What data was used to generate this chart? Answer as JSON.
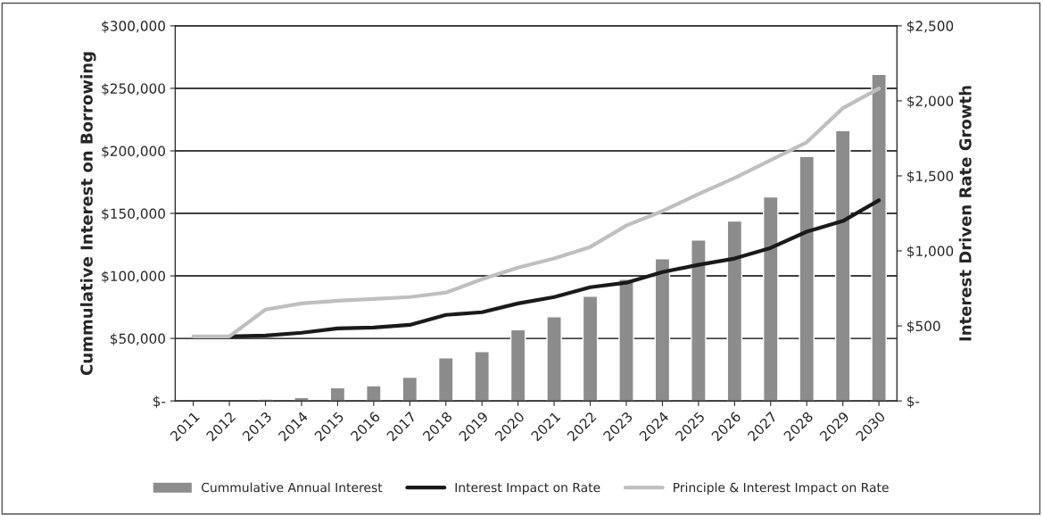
{
  "chart_data": {
    "type": "bar",
    "ylabel": "Cummulative Interest on Borrowing",
    "y2label": "Interest Driven Rate Growth",
    "categories": [
      "2011",
      "2012",
      "2013",
      "2014",
      "2015",
      "2016",
      "2017",
      "2018",
      "2019",
      "2020",
      "2021",
      "2022",
      "2023",
      "2024",
      "2025",
      "2026",
      "2027",
      "2028",
      "2029",
      "2030"
    ],
    "series": [
      {
        "name": "Cummulative Annual Interest",
        "color": "#8c8c8c",
        "values": [
          null,
          null,
          1400,
          2800,
          10500,
          12200,
          19000,
          34400,
          39500,
          57000,
          67300,
          83800,
          97300,
          113800,
          128800,
          143900,
          163200,
          195400,
          216200,
          261200
        ]
      },
      {
        "name": "Interest Impact on Rate",
        "type": "line",
        "axis": "y2",
        "color": "#1a1a1a",
        "values": [
          null,
          430,
          436,
          454,
          483,
          489,
          507,
          573,
          591,
          650,
          692,
          758,
          788,
          859,
          907,
          949,
          1020,
          1128,
          1199,
          1337
        ]
      },
      {
        "name": "Principle & Interest Impact on Rate",
        "type": "line",
        "axis": "y2",
        "color": "#bfbfbf",
        "values": [
          430,
          430,
          609,
          650,
          668,
          680,
          692,
          722,
          811,
          889,
          949,
          1026,
          1169,
          1265,
          1378,
          1486,
          1605,
          1724,
          1951,
          2082
        ]
      }
    ],
    "ylim": [
      0,
      300000
    ],
    "yticks": [
      {
        "value": 0,
        "label": "$-"
      },
      {
        "value": 50000,
        "label": "$50,000"
      },
      {
        "value": 100000,
        "label": "$100,000"
      },
      {
        "value": 150000,
        "label": "$150,000"
      },
      {
        "value": 200000,
        "label": "$200,000"
      },
      {
        "value": 250000,
        "label": "$250,000"
      },
      {
        "value": 300000,
        "label": "$300,000"
      }
    ],
    "y2lim": [
      0,
      2500
    ],
    "y2ticks": [
      {
        "value": 0,
        "label": "$-"
      },
      {
        "value": 500,
        "label": "$500"
      },
      {
        "value": 1000,
        "label": "$1,000"
      },
      {
        "value": 1500,
        "label": "$1,500"
      },
      {
        "value": 2000,
        "label": "$2,000"
      },
      {
        "value": 2500,
        "label": "$2,500"
      }
    ],
    "grid": "y",
    "legend": "bottom",
    "marker": "none",
    "line_style": "solid"
  }
}
